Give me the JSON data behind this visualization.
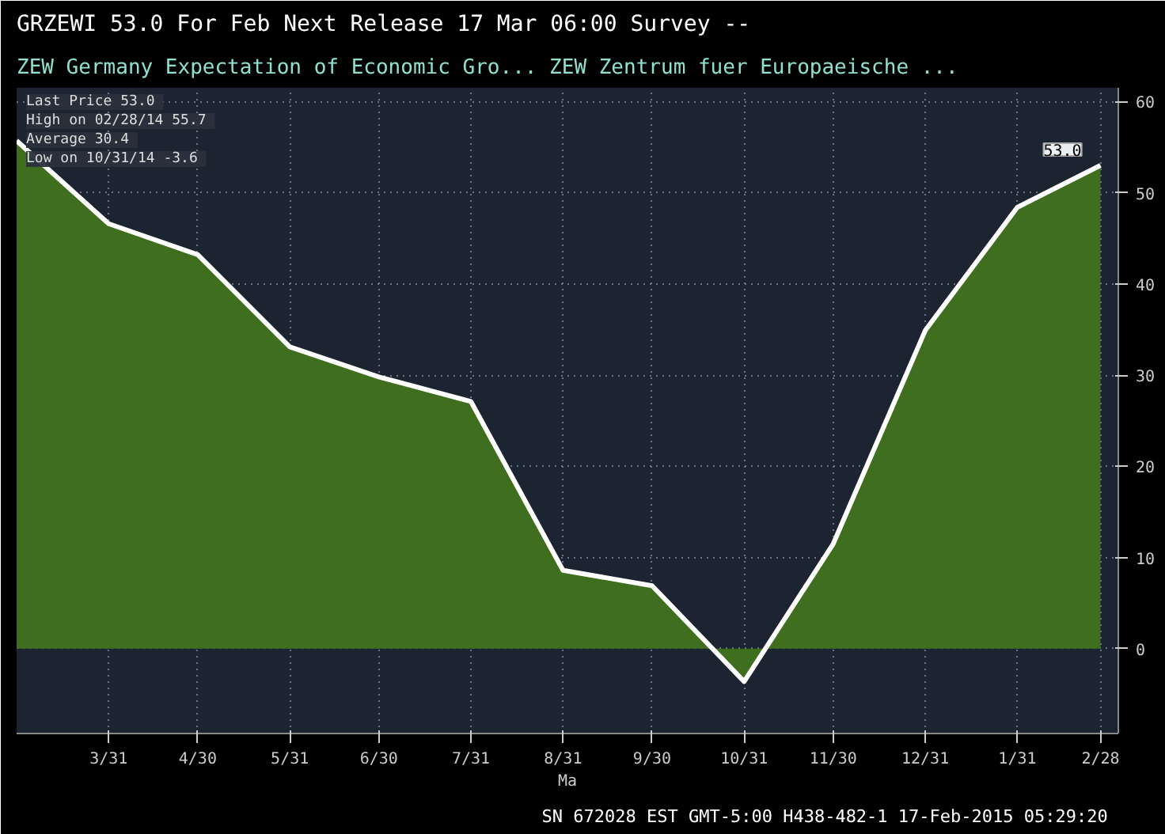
{
  "chart_data": {
    "type": "area",
    "title": "GRZEWI   53.0   For Feb   Next Release 17 Mar 06:00   Survey --",
    "subtitle": "ZEW Germany Expectation of Economic Gro...     ZEW Zentrum fuer Europaeische ...",
    "xlabel": "Ma",
    "x": [
      "2014-02-28",
      "2014-03-31",
      "2014-04-30",
      "2014-05-31",
      "2014-06-30",
      "2014-07-31",
      "2014-08-31",
      "2014-09-30",
      "2014-10-31",
      "2014-11-30",
      "2014-12-31",
      "2015-01-31",
      "2015-02-28"
    ],
    "series": [
      {
        "color": "#3f6e1e",
        "values": [
          55.7,
          46.6,
          43.2,
          33.1,
          29.8,
          27.1,
          8.6,
          6.9,
          -3.6,
          11.5,
          34.9,
          48.4,
          53.0
        ]
      }
    ],
    "xlim": [
      "2014-02-28",
      "2015-03-06"
    ],
    "xticks": [
      {
        "value": "2014-03-31",
        "label": "3/31"
      },
      {
        "value": "2014-04-30",
        "label": "4/30"
      },
      {
        "value": "2014-05-31",
        "label": "5/31"
      },
      {
        "value": "2014-06-30",
        "label": "6/30"
      },
      {
        "value": "2014-07-31",
        "label": "7/31"
      },
      {
        "value": "2014-08-31",
        "label": "8/31"
      },
      {
        "value": "2014-09-30",
        "label": "9/30"
      },
      {
        "value": "2014-10-31",
        "label": "10/31"
      },
      {
        "value": "2014-11-30",
        "label": "11/30"
      },
      {
        "value": "2014-12-31",
        "label": "12/31"
      },
      {
        "value": "2015-01-31",
        "label": "1/31"
      },
      {
        "value": "2015-02-28",
        "label": "2/28"
      }
    ],
    "ylim": [
      -9.3,
      61.5
    ],
    "yticks": [
      0,
      10,
      20,
      30,
      40,
      50,
      60
    ],
    "grid": true,
    "annotations": [
      "Last Price  53.0",
      "High on 02/28/14  55.7",
      "Average  30.4",
      "Low on 10/31/14  -3.6",
      {
        "text": "53.0",
        "x": "2015-02-28",
        "y": 53.0
      },
      "SN 672028 EST  GMT-5:00 H438-482-1 17-Feb-2015 05:29:20"
    ]
  }
}
